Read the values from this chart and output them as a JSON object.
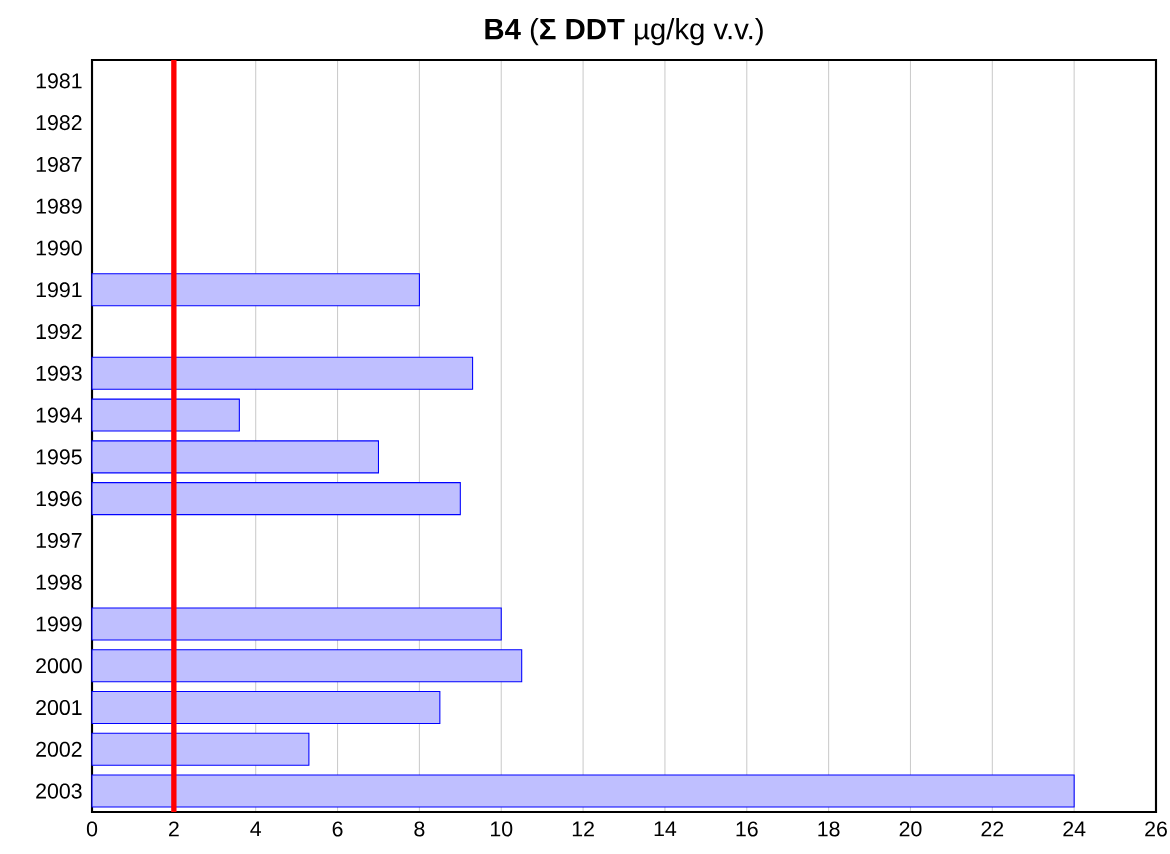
{
  "chart_data": {
    "type": "bar",
    "orientation": "horizontal",
    "title": "**B4** (**Σ DDT** µg/kg v.v.)",
    "categories": [
      "1981",
      "1982",
      "1987",
      "1989",
      "1990",
      "1991",
      "1992",
      "1993",
      "1994",
      "1995",
      "1996",
      "1997",
      "1998",
      "1999",
      "2000",
      "2001",
      "2002",
      "2003"
    ],
    "values": [
      null,
      null,
      null,
      null,
      null,
      8.0,
      null,
      9.3,
      3.6,
      7.0,
      9.0,
      null,
      null,
      10.0,
      10.5,
      8.5,
      5.3,
      24.0
    ],
    "color": "#0000ff",
    "xlim": [
      0,
      26
    ],
    "xticks": [
      0,
      2,
      4,
      6,
      8,
      10,
      12,
      14,
      16,
      18,
      20,
      22,
      24,
      26
    ],
    "grid": "x",
    "ref_lines": [
      {
        "axis": "x",
        "value": 2,
        "color": "#ff0000"
      }
    ]
  }
}
